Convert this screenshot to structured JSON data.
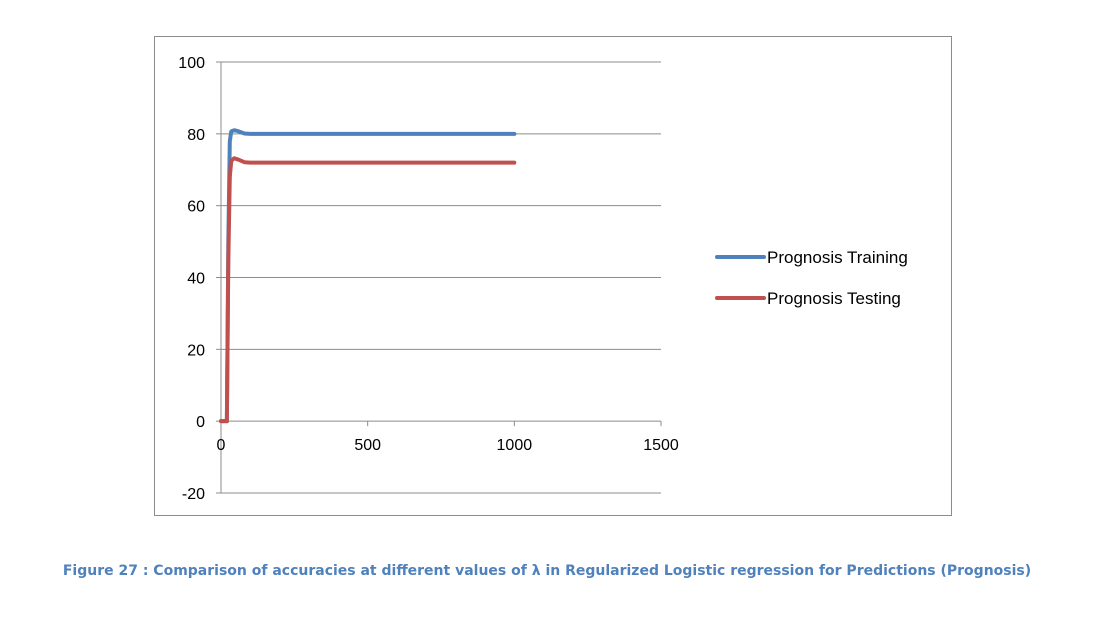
{
  "caption": "Figure 27 : Comparison of accuracies at different values of λ in Regularized Logistic regression for Predictions (Prognosis)",
  "chart_data": {
    "type": "line",
    "title": "",
    "xlabel": "",
    "ylabel": "",
    "xlim": [
      0,
      1500
    ],
    "ylim": [
      -20,
      100
    ],
    "x_ticks": [
      0,
      500,
      1000,
      1500
    ],
    "y_ticks": [
      -20,
      0,
      20,
      40,
      60,
      80,
      100
    ],
    "x_tick_labels": [
      "0",
      "500",
      "1000",
      "1500"
    ],
    "y_tick_labels": [
      "-20",
      "0",
      "20",
      "40",
      "60",
      "80",
      "100"
    ],
    "grid": "horizontal major gridlines",
    "legend": "right",
    "series": [
      {
        "name": "Prognosis Training",
        "color": "#4f81bd",
        "x": [
          0,
          20,
          25,
          30,
          35,
          45,
          60,
          80,
          100,
          200,
          500,
          1000
        ],
        "y": [
          0,
          0,
          50,
          78,
          80.7,
          81,
          80.7,
          80.1,
          80,
          80,
          80,
          80
        ]
      },
      {
        "name": "Prognosis Testing",
        "color": "#c0504d",
        "x": [
          0,
          20,
          25,
          30,
          35,
          45,
          60,
          80,
          100,
          200,
          500,
          1000
        ],
        "y": [
          0,
          0,
          45,
          68,
          72.5,
          73.2,
          72.8,
          72.1,
          72,
          72,
          72,
          72
        ]
      }
    ]
  }
}
